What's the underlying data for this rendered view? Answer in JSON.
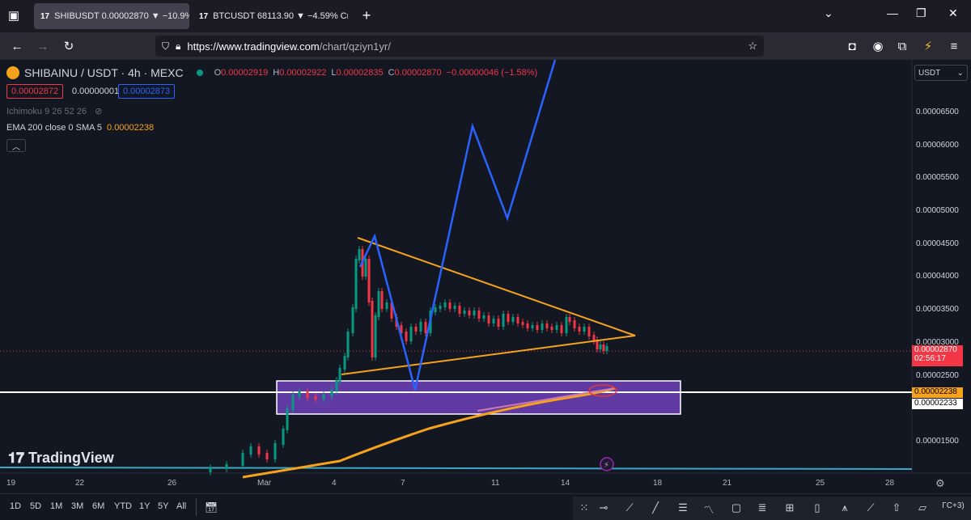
{
  "browser": {
    "tabs": [
      {
        "logo": "17",
        "title": "SHIBUSDT 0.00002870 ▼ −10.9%",
        "active": true
      },
      {
        "logo": "17",
        "title": "BTCUSDT 68113.90 ▼ −4.59% Cr",
        "active": false
      }
    ],
    "url_main": "https://www.tradingview.com",
    "url_path": "/chart/qziyn1yr/"
  },
  "chart": {
    "symbol": "SHIBAINU / USDT · 4h · MEXC",
    "ohlc": {
      "o_label": "O",
      "o": "0.00002919",
      "h_label": "H",
      "h": "0.00002922",
      "l_label": "L",
      "l": "0.00002835",
      "c_label": "C",
      "c": "0.00002870",
      "change": "−0.00000046 (−1.58%)"
    },
    "bid": "0.00002872",
    "spread": "0.00000001",
    "ask": "0.00002873",
    "indicators": {
      "ichimoku": "Ichimoku 9 26 52 26",
      "ema_label": "EMA 200 close 0 SMA 5",
      "ema_value": "0.00002238"
    },
    "currency_select": "USDT",
    "last_price": "0.00002870",
    "countdown": "02:56:17",
    "ema_tag": "0.00002238",
    "line_tag": "0.00002233",
    "watermark": "TradingView"
  },
  "price_axis": [
    "0.00006500",
    "0.00006000",
    "0.00005500",
    "0.00005000",
    "0.00004500",
    "0.00004000",
    "0.00003500",
    "0.00003000",
    "0.00002500",
    "0.00001500"
  ],
  "time_axis": [
    "19",
    "22",
    "26",
    "Mar",
    "4",
    "7",
    "11",
    "14",
    "18",
    "21",
    "25",
    "28"
  ],
  "timeframes": [
    "1D",
    "5D",
    "1M",
    "3M",
    "6M",
    "YTD",
    "1Y",
    "5Y",
    "All"
  ],
  "colors": {
    "background": "#131722",
    "triangle": "#f7a21b",
    "projection": "#2962ff",
    "zone": "#7b42c9",
    "ema": "#f7a21b",
    "down": "#f23645",
    "up": "#089981"
  }
}
